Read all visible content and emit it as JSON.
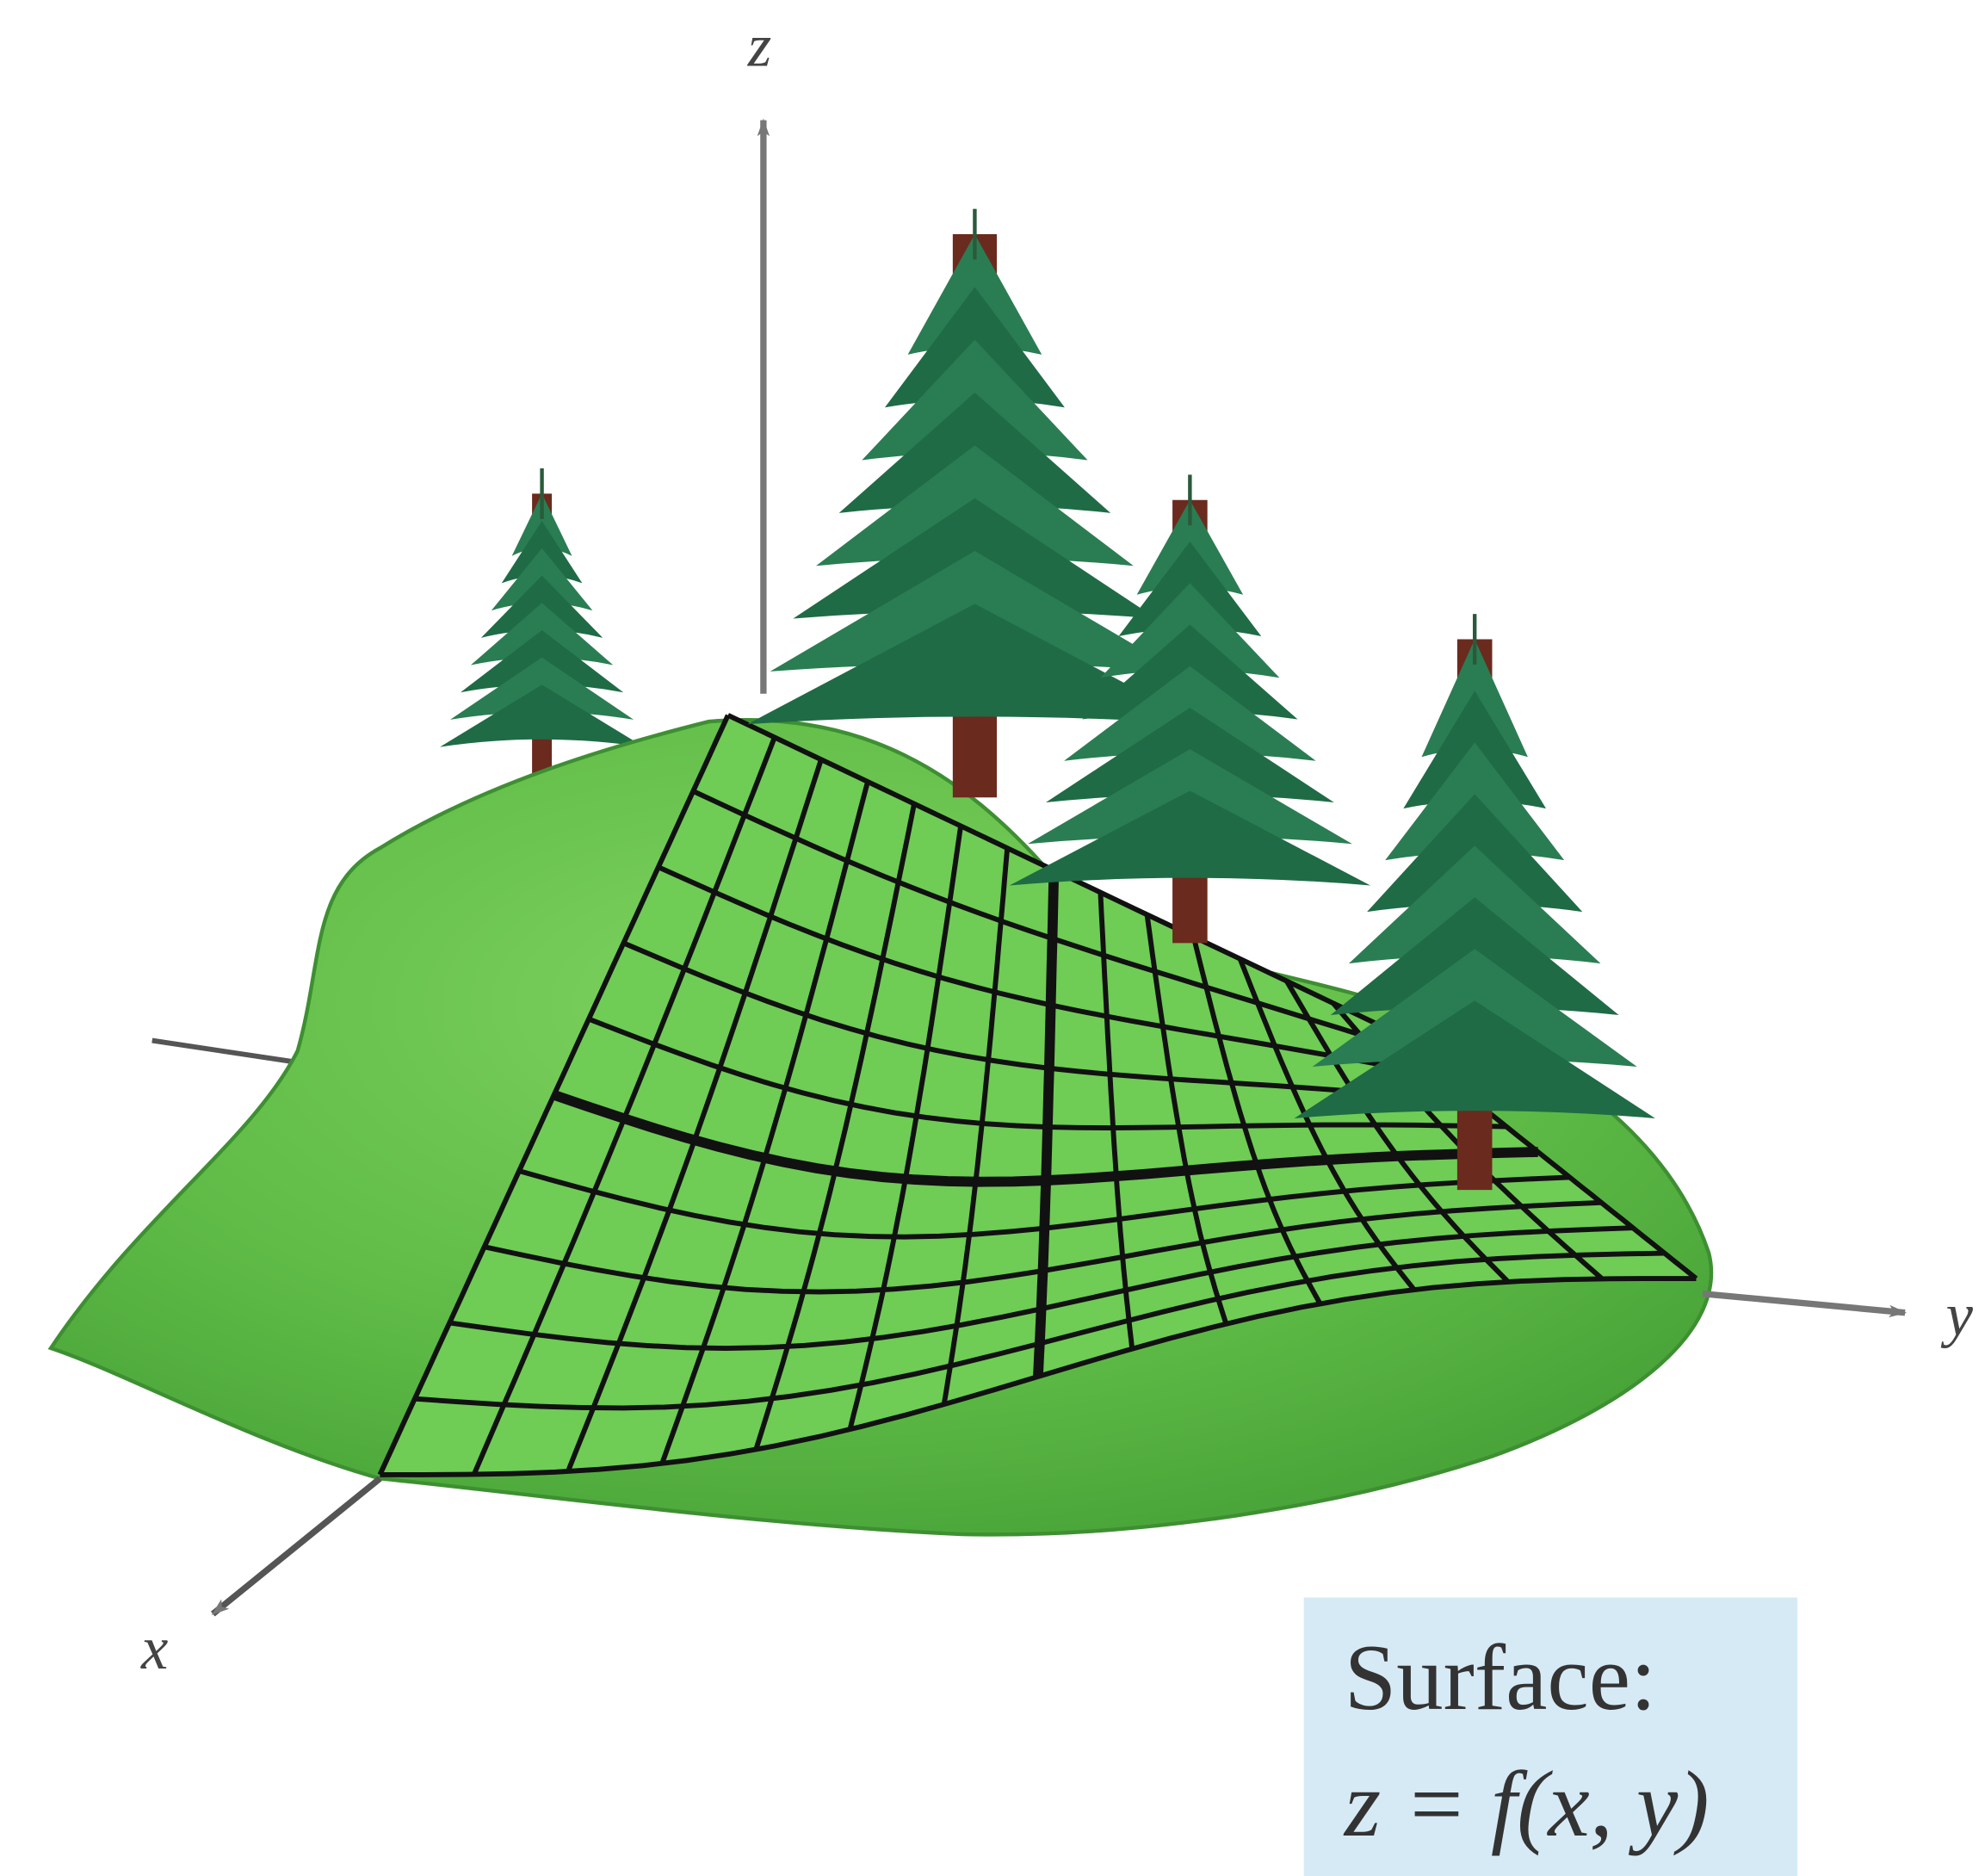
{
  "axes": {
    "z": "z",
    "x": "x",
    "y": "y"
  },
  "label": {
    "title": "Surface:",
    "equation": "z = f(x, y)"
  }
}
